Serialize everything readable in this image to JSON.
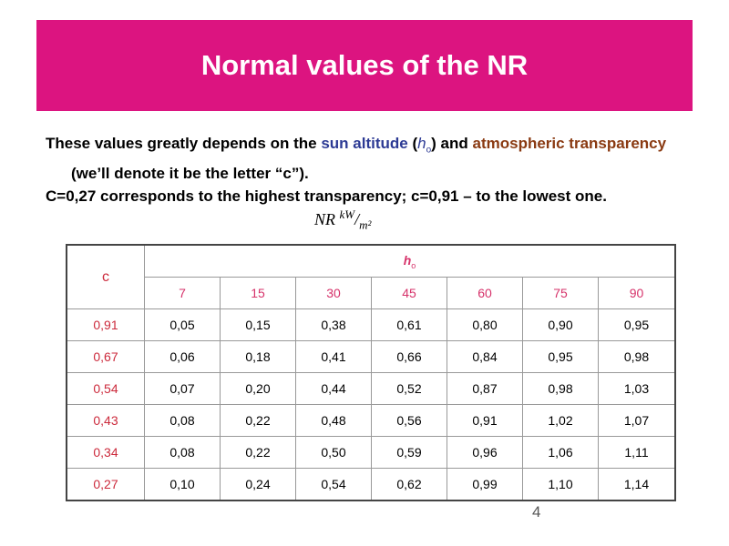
{
  "title": "Normal values of the NR",
  "paragraph1": {
    "text1": "These values greatly depends on the ",
    "highlight1": "sun altitude",
    "text2": " (",
    "symbol": "h",
    "subscript": "o",
    "text3": ") and ",
    "highlight2": "atmospheric transparency",
    "text4": " (we’ll denote it be the letter “c”)."
  },
  "paragraph2": "C=0,27 corresponds to the highest transparency; c=0,91 – to the lowest one.",
  "formula": {
    "lhs": "NR",
    "numerator": "kW",
    "denominator": "m²"
  },
  "table": {
    "corner": "c",
    "group": {
      "symbol": "h",
      "subscript": "o"
    },
    "columns": [
      "7",
      "15",
      "30",
      "45",
      "60",
      "75",
      "90"
    ],
    "rows": [
      {
        "c": "0,91",
        "values": [
          "0,05",
          "0,15",
          "0,38",
          "0,61",
          "0,80",
          "0,90",
          "0,95"
        ]
      },
      {
        "c": "0,67",
        "values": [
          "0,06",
          "0,18",
          "0,41",
          "0,66",
          "0,84",
          "0,95",
          "0,98"
        ]
      },
      {
        "c": "0,54",
        "values": [
          "0,07",
          "0,20",
          "0,44",
          "0,52",
          "0,87",
          "0,98",
          "1,03"
        ]
      },
      {
        "c": "0,43",
        "values": [
          "0,08",
          "0,22",
          "0,48",
          "0,56",
          "0,91",
          "1,02",
          "1,07"
        ]
      },
      {
        "c": "0,34",
        "values": [
          "0,08",
          "0,22",
          "0,50",
          "0,59",
          "0,96",
          "1,06",
          "1,11"
        ]
      },
      {
        "c": "0,27",
        "values": [
          "0,10",
          "0,24",
          "0,54",
          "0,62",
          "0,99",
          "1,10",
          "1,14"
        ]
      }
    ]
  },
  "page_number": "4"
}
